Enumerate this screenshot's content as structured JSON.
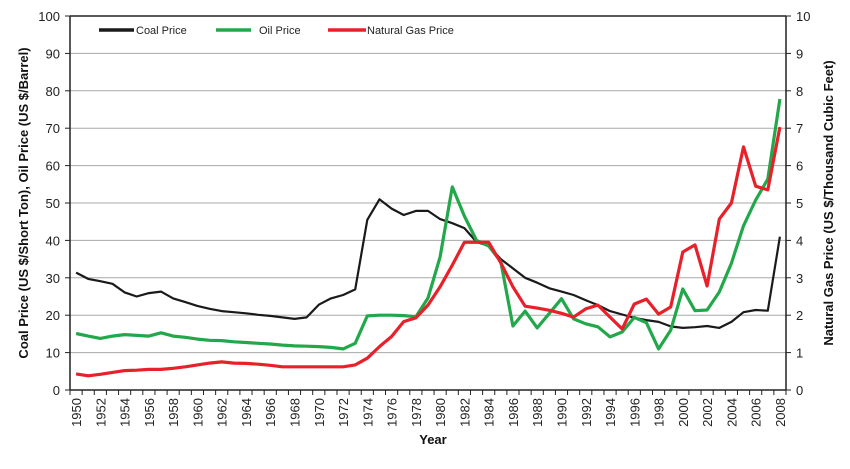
{
  "chart_data": {
    "type": "line",
    "title": "",
    "xlabel": "Year",
    "ylabel_left": "Coal Price (US $/Short Ton), Oil Price (US $/Barrel)",
    "ylabel_right": "Natural Gas Price (US $/Thousand Cubic Feet)",
    "ylim_left": [
      0,
      100
    ],
    "ylim_right": [
      0,
      10
    ],
    "yticks_left": [
      "0",
      "10",
      "20",
      "30",
      "40",
      "50",
      "60",
      "70",
      "80",
      "90",
      "100"
    ],
    "yticks_right": [
      "0",
      "1",
      "2",
      "3",
      "4",
      "5",
      "6",
      "7",
      "8",
      "9",
      "10"
    ],
    "grid": true,
    "legend_position": "top-left",
    "x": [
      1950,
      1951,
      1952,
      1953,
      1954,
      1955,
      1956,
      1957,
      1958,
      1959,
      1960,
      1961,
      1962,
      1963,
      1964,
      1965,
      1966,
      1967,
      1968,
      1969,
      1970,
      1971,
      1972,
      1973,
      1974,
      1975,
      1976,
      1977,
      1978,
      1979,
      1980,
      1981,
      1982,
      1983,
      1984,
      1985,
      1986,
      1987,
      1988,
      1989,
      1990,
      1991,
      1992,
      1993,
      1994,
      1995,
      1996,
      1997,
      1998,
      1999,
      2000,
      2001,
      2002,
      2003,
      2004,
      2005,
      2006,
      2007,
      2008
    ],
    "xtick_labels": [
      "1950",
      "1952",
      "1954",
      "1956",
      "1958",
      "1960",
      "1962",
      "1964",
      "1966",
      "1968",
      "1970",
      "1972",
      "1974",
      "1976",
      "1978",
      "1980",
      "1982",
      "1984",
      "1986",
      "1988",
      "1990",
      "1992",
      "1994",
      "1996",
      "1998",
      "2000",
      "2002",
      "2004",
      "2006",
      "2008"
    ],
    "series": [
      {
        "name": "Coal Price",
        "axis": "left",
        "color": "#1a1a1a",
        "values": [
          31.4,
          29.7,
          29.1,
          28.4,
          26.1,
          25.0,
          25.9,
          26.3,
          24.5,
          23.5,
          22.5,
          21.7,
          21.1,
          20.8,
          20.5,
          20.1,
          19.8,
          19.4,
          19.0,
          19.4,
          22.8,
          24.5,
          25.4,
          26.9,
          45.5,
          51.0,
          48.5,
          46.8,
          47.9,
          47.9,
          45.7,
          44.6,
          43.3,
          39.6,
          38.5,
          35.0,
          32.5,
          30.0,
          28.7,
          27.2,
          26.3,
          25.4,
          24.0,
          22.7,
          21.1,
          20.2,
          19.3,
          18.7,
          18.2,
          17.0,
          16.6,
          16.8,
          17.1,
          16.6,
          18.2,
          20.8,
          21.4,
          21.2,
          41.0
        ]
      },
      {
        "name": "Oil Price",
        "axis": "left",
        "color": "#22a84a",
        "values": [
          15.1,
          14.4,
          13.8,
          14.4,
          14.8,
          14.6,
          14.4,
          15.3,
          14.4,
          14.1,
          13.6,
          13.3,
          13.2,
          12.9,
          12.7,
          12.5,
          12.3,
          12.0,
          11.8,
          11.7,
          11.6,
          11.4,
          11.0,
          12.5,
          19.8,
          20.0,
          20.0,
          19.9,
          19.6,
          24.6,
          35.6,
          54.3,
          46.5,
          40.0,
          38.5,
          34.3,
          17.1,
          21.1,
          16.6,
          20.5,
          24.4,
          19.0,
          17.7,
          16.9,
          14.2,
          15.5,
          19.4,
          18.0,
          11.0,
          16.0,
          27.0,
          21.2,
          21.4,
          26.2,
          33.9,
          43.9,
          50.8,
          56.4,
          77.8
        ]
      },
      {
        "name": "Natural Gas Price",
        "axis": "right",
        "color": "#e8202a",
        "values": [
          0.43,
          0.38,
          0.42,
          0.47,
          0.52,
          0.53,
          0.55,
          0.55,
          0.58,
          0.62,
          0.67,
          0.72,
          0.75,
          0.72,
          0.71,
          0.69,
          0.66,
          0.62,
          0.62,
          0.62,
          0.62,
          0.62,
          0.62,
          0.67,
          0.85,
          1.16,
          1.43,
          1.83,
          1.93,
          2.27,
          2.76,
          3.34,
          3.95,
          3.95,
          3.95,
          3.4,
          2.76,
          2.24,
          2.19,
          2.13,
          2.05,
          1.95,
          2.17,
          2.27,
          1.95,
          1.63,
          2.3,
          2.43,
          2.03,
          2.22,
          3.69,
          3.88,
          2.78,
          4.57,
          5.0,
          6.5,
          5.45,
          5.35,
          7.03
        ]
      }
    ]
  }
}
